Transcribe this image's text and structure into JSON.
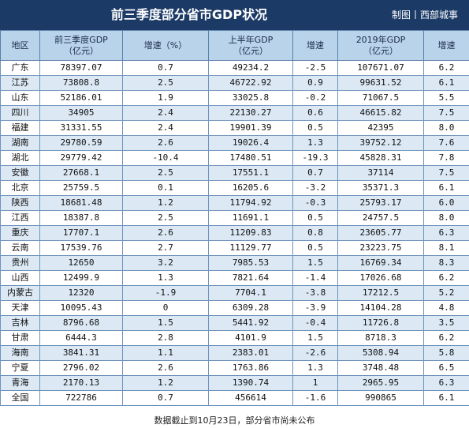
{
  "header": {
    "title": "前三季度部分省市GDP状况",
    "credit": "制图丨西部城事"
  },
  "table": {
    "columns": [
      {
        "line1": "地区",
        "line2": ""
      },
      {
        "line1": "前三季度GDP",
        "line2": "（亿元）"
      },
      {
        "line1": "增速（%）",
        "line2": ""
      },
      {
        "line1": "上半年GDP",
        "line2": "（亿元）"
      },
      {
        "line1": "增速",
        "line2": ""
      },
      {
        "line1": "2019年GDP",
        "line2": "（亿元）"
      },
      {
        "line1": "增速",
        "line2": ""
      }
    ],
    "rows": [
      [
        "广东",
        "78397.07",
        "0.7",
        "49234.2",
        "-2.5",
        "107671.07",
        "6.2"
      ],
      [
        "江苏",
        "73808.8",
        "2.5",
        "46722.92",
        "0.9",
        "99631.52",
        "6.1"
      ],
      [
        "山东",
        "52186.01",
        "1.9",
        "33025.8",
        "-0.2",
        "71067.5",
        "5.5"
      ],
      [
        "四川",
        "34905",
        "2.4",
        "22130.27",
        "0.6",
        "46615.82",
        "7.5"
      ],
      [
        "福建",
        "31331.55",
        "2.4",
        "19901.39",
        "0.5",
        "42395",
        "8.0"
      ],
      [
        "湖南",
        "29780.59",
        "2.6",
        "19026.4",
        "1.3",
        "39752.12",
        "7.6"
      ],
      [
        "湖北",
        "29779.42",
        "-10.4",
        "17480.51",
        "-19.3",
        "45828.31",
        "7.8"
      ],
      [
        "安徽",
        "27668.1",
        "2.5",
        "17551.1",
        "0.7",
        "37114",
        "7.5"
      ],
      [
        "北京",
        "25759.5",
        "0.1",
        "16205.6",
        "-3.2",
        "35371.3",
        "6.1"
      ],
      [
        "陕西",
        "18681.48",
        "1.2",
        "11794.92",
        "-0.3",
        "25793.17",
        "6.0"
      ],
      [
        "江西",
        "18387.8",
        "2.5",
        "11691.1",
        "0.5",
        "24757.5",
        "8.0"
      ],
      [
        "重庆",
        "17707.1",
        "2.6",
        "11209.83",
        "0.8",
        "23605.77",
        "6.3"
      ],
      [
        "云南",
        "17539.76",
        "2.7",
        "11129.77",
        "0.5",
        "23223.75",
        "8.1"
      ],
      [
        "贵州",
        "12650",
        "3.2",
        "7985.53",
        "1.5",
        "16769.34",
        "8.3"
      ],
      [
        "山西",
        "12499.9",
        "1.3",
        "7821.64",
        "-1.4",
        "17026.68",
        "6.2"
      ],
      [
        "内蒙古",
        "12320",
        "-1.9",
        "7704.1",
        "-3.8",
        "17212.5",
        "5.2"
      ],
      [
        "天津",
        "10095.43",
        "0",
        "6309.28",
        "-3.9",
        "14104.28",
        "4.8"
      ],
      [
        "吉林",
        "8796.68",
        "1.5",
        "5441.92",
        "-0.4",
        "11726.8",
        "3.5"
      ],
      [
        "甘肃",
        "6444.3",
        "2.8",
        "4101.9",
        "1.5",
        "8718.3",
        "6.2"
      ],
      [
        "海南",
        "3841.31",
        "1.1",
        "2383.01",
        "-2.6",
        "5308.94",
        "5.8"
      ],
      [
        "宁夏",
        "2796.02",
        "2.6",
        "1763.86",
        "1.3",
        "3748.48",
        "6.5"
      ],
      [
        "青海",
        "2170.13",
        "1.2",
        "1390.74",
        "1",
        "2965.95",
        "6.3"
      ],
      [
        "全国",
        "722786",
        "0.7",
        "456614",
        "-1.6",
        "990865",
        "6.1"
      ]
    ]
  },
  "footer": {
    "note": "数据截止到10月23日，部分省市尚未公布"
  }
}
